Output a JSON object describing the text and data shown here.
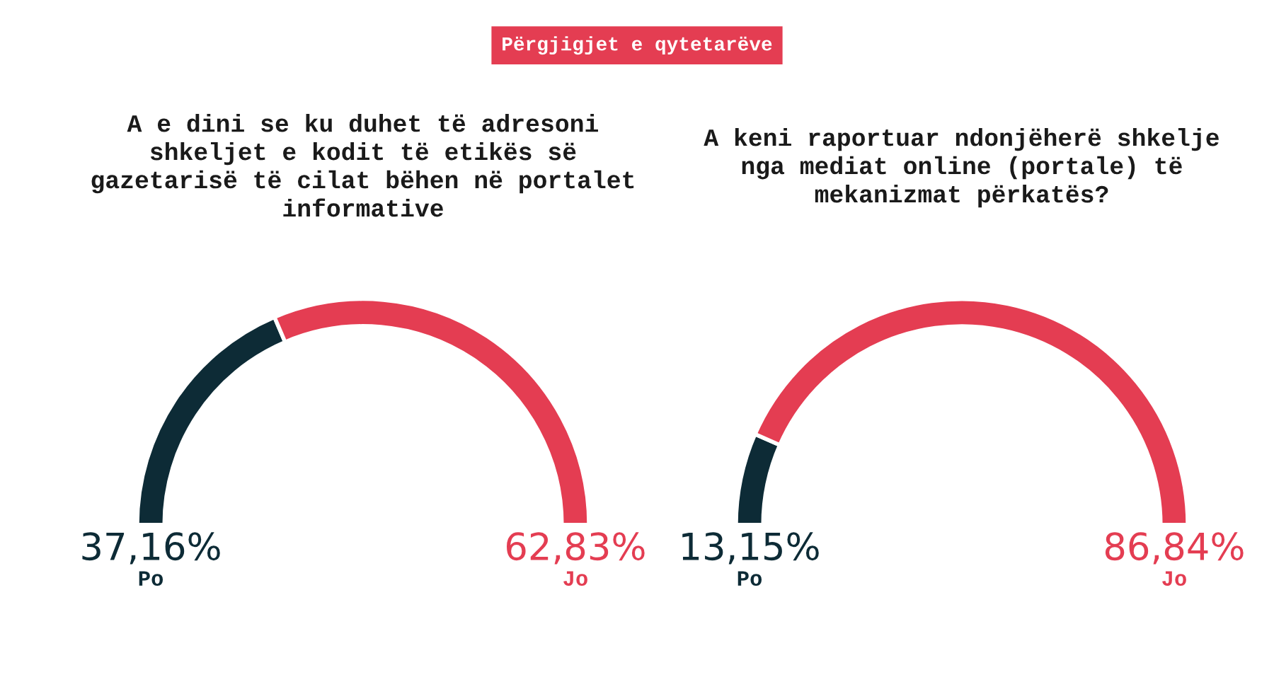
{
  "chart_data": [
    {
      "type": "donut",
      "annotations": [
        "Përgjigjet e qytetarëve"
      ],
      "title": "A e dini se ku duhet të adresoni shkeljet e kodit të etikës së gazetarisë të cilat bëhen në portalet informative",
      "categories": [
        "Po",
        "Jo"
      ],
      "values": [
        37.16,
        62.83
      ],
      "value_labels": [
        "37,16%",
        "62,83%"
      ],
      "colors": [
        "#0d2b36",
        "#e43d52"
      ]
    },
    {
      "type": "donut",
      "title": "A keni raportuar ndonjëherë shkelje nga mediat online (portale) të mekanizmat përkatës?",
      "categories": [
        "Po",
        "Jo"
      ],
      "values": [
        13.15,
        86.84
      ],
      "value_labels": [
        "13,15%",
        "86,84%"
      ],
      "colors": [
        "#0d2b36",
        "#e43d52"
      ]
    }
  ]
}
